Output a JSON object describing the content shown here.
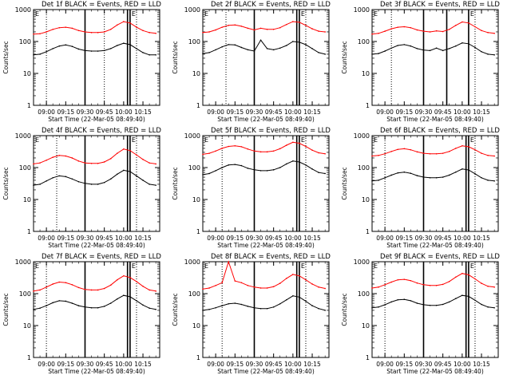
{
  "figure": {
    "shared": {
      "ylabel": "Counts/sec",
      "xlabel": "Start Time (22-Mar-05 08:49:40)",
      "xticks": [
        "09:00",
        "09:15",
        "09:30",
        "09:45",
        "10:00",
        "10:15"
      ],
      "yticks": [
        "1",
        "10",
        "100",
        "1000"
      ],
      "marker_labels": [
        "E",
        "E"
      ],
      "colors": {
        "events": "#000000",
        "lld": "#ff0000",
        "axes": "#000000"
      }
    }
  },
  "chart_data": [
    {
      "type": "line",
      "title": "Det 1f BLACK = Events, RED = LLD",
      "xlabel": "Start Time (22-Mar-05 08:49:40)",
      "ylabel": "Counts/sec",
      "x_tick_labels": [
        "09:00",
        "09:15",
        "09:30",
        "09:45",
        "10:00",
        "10:15"
      ],
      "y_tick_labels": [
        "1",
        "10",
        "100",
        "1000"
      ],
      "y_log": true,
      "ylim": [
        1,
        1000
      ],
      "x": [
        "08:50",
        "08:55",
        "09:00",
        "09:05",
        "09:10",
        "09:15",
        "09:20",
        "09:25",
        "09:30",
        "09:35",
        "09:40",
        "09:45",
        "09:50",
        "09:55",
        "10:00",
        "10:05",
        "10:10",
        "10:15",
        "10:20",
        "10:25"
      ],
      "series": [
        {
          "name": "Events",
          "color": "#000000",
          "values": [
            38,
            40,
            48,
            60,
            72,
            78,
            70,
            58,
            52,
            50,
            50,
            52,
            60,
            75,
            88,
            80,
            60,
            45,
            38,
            38
          ]
        },
        {
          "name": "LLD",
          "color": "#ff0000",
          "values": [
            170,
            175,
            200,
            240,
            270,
            280,
            260,
            220,
            200,
            190,
            190,
            200,
            240,
            330,
            420,
            380,
            280,
            220,
            190,
            180
          ]
        }
      ],
      "dotted_lines": [
        "09:00",
        "09:45",
        "10:10"
      ],
      "solid_lines": [
        "09:30",
        "10:03",
        "10:05"
      ]
    },
    {
      "type": "line",
      "title": "Det 2f BLACK = Events, RED = LLD",
      "xlabel": "Start Time (22-Mar-05 08:49:40)",
      "ylabel": "Counts/sec",
      "x_tick_labels": [
        "09:00",
        "09:15",
        "09:30",
        "09:45",
        "10:00",
        "10:15"
      ],
      "y_tick_labels": [
        "1",
        "10",
        "100",
        "1000"
      ],
      "y_log": true,
      "ylim": [
        1,
        1000
      ],
      "x": [
        "08:50",
        "08:55",
        "09:00",
        "09:05",
        "09:10",
        "09:15",
        "09:20",
        "09:25",
        "09:30",
        "09:35",
        "09:40",
        "09:45",
        "09:50",
        "09:55",
        "10:00",
        "10:05",
        "10:10",
        "10:15",
        "10:20",
        "10:25"
      ],
      "series": [
        {
          "name": "Events",
          "color": "#000000",
          "values": [
            42,
            45,
            55,
            68,
            80,
            78,
            65,
            55,
            50,
            110,
            60,
            55,
            62,
            75,
            100,
            95,
            80,
            60,
            45,
            40
          ]
        },
        {
          "name": "LLD",
          "color": "#ff0000",
          "values": [
            190,
            200,
            230,
            280,
            320,
            330,
            300,
            260,
            230,
            260,
            240,
            240,
            270,
            340,
            420,
            400,
            320,
            250,
            210,
            200
          ]
        }
      ],
      "dotted_lines": [
        "09:08",
        "10:10"
      ],
      "solid_lines": [
        "09:30",
        "10:03",
        "10:05"
      ]
    },
    {
      "type": "line",
      "title": "Det 3f BLACK = Events, RED = LLD",
      "xlabel": "Start Time (22-Mar-05 08:49:40)",
      "ylabel": "Counts/sec",
      "x_tick_labels": [
        "09:00",
        "09:15",
        "09:30",
        "09:45",
        "10:00",
        "10:15"
      ],
      "y_tick_labels": [
        "1",
        "10",
        "100",
        "1000"
      ],
      "y_log": true,
      "ylim": [
        1,
        1000
      ],
      "x": [
        "08:50",
        "08:55",
        "09:00",
        "09:05",
        "09:10",
        "09:15",
        "09:20",
        "09:25",
        "09:30",
        "09:35",
        "09:40",
        "09:45",
        "09:50",
        "09:55",
        "10:00",
        "10:05",
        "10:10",
        "10:15",
        "10:20",
        "10:25"
      ],
      "series": [
        {
          "name": "Events",
          "color": "#000000",
          "values": [
            40,
            42,
            50,
            62,
            75,
            80,
            72,
            60,
            54,
            52,
            62,
            52,
            60,
            72,
            90,
            85,
            65,
            48,
            40,
            38
          ]
        },
        {
          "name": "LLD",
          "color": "#ff0000",
          "values": [
            170,
            180,
            210,
            250,
            280,
            290,
            270,
            230,
            210,
            200,
            215,
            205,
            240,
            320,
            410,
            380,
            290,
            220,
            190,
            180
          ]
        }
      ],
      "dotted_lines": [
        "09:05",
        "10:10"
      ],
      "solid_lines": [
        "09:30",
        "09:48",
        "10:05"
      ]
    },
    {
      "type": "line",
      "title": "Det 4f BLACK = Events, RED = LLD",
      "xlabel": "Start Time (22-Mar-05 08:49:40)",
      "ylabel": "Counts/sec",
      "x_tick_labels": [
        "09:00",
        "09:15",
        "09:30",
        "09:45",
        "10:00",
        "10:15"
      ],
      "y_tick_labels": [
        "1",
        "10",
        "100",
        "1000"
      ],
      "y_log": true,
      "ylim": [
        1,
        1000
      ],
      "x": [
        "08:50",
        "08:55",
        "09:00",
        "09:05",
        "09:10",
        "09:15",
        "09:20",
        "09:25",
        "09:30",
        "09:35",
        "09:40",
        "09:45",
        "09:50",
        "09:55",
        "10:00",
        "10:05",
        "10:10",
        "10:15",
        "10:20",
        "10:25"
      ],
      "series": [
        {
          "name": "Events",
          "color": "#000000",
          "values": [
            28,
            30,
            38,
            48,
            55,
            52,
            44,
            36,
            32,
            30,
            30,
            34,
            44,
            62,
            82,
            75,
            55,
            40,
            30,
            28
          ]
        },
        {
          "name": "LLD",
          "color": "#ff0000",
          "values": [
            130,
            140,
            170,
            210,
            240,
            230,
            200,
            160,
            140,
            135,
            135,
            150,
            190,
            280,
            380,
            340,
            250,
            180,
            140,
            130
          ]
        }
      ],
      "dotted_lines": [
        "09:08",
        "10:10"
      ],
      "solid_lines": [
        "09:30",
        "10:03",
        "10:05"
      ]
    },
    {
      "type": "line",
      "title": "Det 5f BLACK = Events, RED = LLD",
      "xlabel": "Start Time (22-Mar-05 08:49:40)",
      "ylabel": "Counts/sec",
      "x_tick_labels": [
        "09:00",
        "09:15",
        "09:30",
        "09:45",
        "10:00",
        "10:15"
      ],
      "y_tick_labels": [
        "1",
        "10",
        "100",
        "1000"
      ],
      "y_log": true,
      "ylim": [
        1,
        1000
      ],
      "x": [
        "08:50",
        "08:55",
        "09:00",
        "09:05",
        "09:10",
        "09:15",
        "09:20",
        "09:25",
        "09:30",
        "09:35",
        "09:40",
        "09:45",
        "09:50",
        "09:55",
        "10:00",
        "10:05",
        "10:10",
        "10:15",
        "10:20",
        "10:25"
      ],
      "series": [
        {
          "name": "Events",
          "color": "#000000",
          "values": [
            60,
            65,
            80,
            100,
            120,
            125,
            115,
            95,
            85,
            80,
            80,
            85,
            100,
            130,
            160,
            150,
            120,
            90,
            70,
            65
          ]
        },
        {
          "name": "LLD",
          "color": "#ff0000",
          "values": [
            260,
            280,
            330,
            400,
            460,
            480,
            450,
            380,
            330,
            310,
            310,
            330,
            390,
            500,
            620,
            580,
            460,
            350,
            290,
            270
          ]
        }
      ],
      "dotted_lines": [
        "09:05",
        "10:10"
      ],
      "solid_lines": [
        "09:30",
        "10:03",
        "10:05"
      ]
    },
    {
      "type": "line",
      "title": "Det 6f BLACK = Events, RED = LLD",
      "xlabel": "Start Time (22-Mar-05 08:49:40)",
      "ylabel": "Counts/sec",
      "x_tick_labels": [
        "09:00",
        "09:15",
        "09:30",
        "09:45",
        "10:00",
        "10:15"
      ],
      "y_tick_labels": [
        "1",
        "10",
        "100",
        "1000"
      ],
      "y_log": true,
      "ylim": [
        1,
        1000
      ],
      "x": [
        "08:50",
        "08:55",
        "09:00",
        "09:05",
        "09:10",
        "09:15",
        "09:20",
        "09:25",
        "09:30",
        "09:35",
        "09:40",
        "09:45",
        "09:50",
        "09:55",
        "10:00",
        "10:05",
        "10:10",
        "10:15",
        "10:20",
        "10:25"
      ],
      "series": [
        {
          "name": "Events",
          "color": "#000000",
          "values": [
            38,
            40,
            48,
            58,
            68,
            72,
            66,
            56,
            50,
            48,
            48,
            50,
            58,
            72,
            90,
            84,
            64,
            48,
            40,
            38
          ]
        },
        {
          "name": "LLD",
          "color": "#ff0000",
          "values": [
            230,
            240,
            270,
            320,
            370,
            390,
            360,
            310,
            280,
            270,
            270,
            280,
            320,
            400,
            480,
            450,
            360,
            280,
            240,
            230
          ]
        }
      ],
      "dotted_lines": [
        "09:00",
        "10:10"
      ],
      "solid_lines": [
        "09:30",
        "10:03",
        "10:05"
      ]
    },
    {
      "type": "line",
      "title": "Det 7f BLACK = Events, RED = LLD",
      "xlabel": "Start Time (22-Mar-05 08:49:40)",
      "ylabel": "Counts/sec",
      "x_tick_labels": [
        "09:00",
        "09:15",
        "09:30",
        "09:45",
        "10:00",
        "10:15"
      ],
      "y_tick_labels": [
        "1",
        "10",
        "100",
        "1000"
      ],
      "y_log": true,
      "ylim": [
        1,
        1000
      ],
      "x": [
        "08:50",
        "08:55",
        "09:00",
        "09:05",
        "09:10",
        "09:15",
        "09:20",
        "09:25",
        "09:30",
        "09:35",
        "09:40",
        "09:45",
        "09:50",
        "09:55",
        "10:00",
        "10:05",
        "10:10",
        "10:15",
        "10:20",
        "10:25"
      ],
      "series": [
        {
          "name": "Events",
          "color": "#000000",
          "values": [
            32,
            35,
            42,
            52,
            60,
            58,
            50,
            42,
            38,
            36,
            36,
            40,
            50,
            68,
            88,
            80,
            60,
            44,
            35,
            32
          ]
        },
        {
          "name": "LLD",
          "color": "#ff0000",
          "values": [
            120,
            130,
            160,
            200,
            230,
            220,
            190,
            155,
            135,
            130,
            130,
            145,
            185,
            270,
            360,
            320,
            240,
            170,
            130,
            120
          ]
        }
      ],
      "dotted_lines": [
        "09:00",
        "10:10"
      ],
      "solid_lines": [
        "09:30",
        "10:03",
        "10:05"
      ]
    },
    {
      "type": "line",
      "title": "Det 8f BLACK = Events, RED = LLD",
      "xlabel": "Start Time (22-Mar-05 08:49:40)",
      "ylabel": "Counts/sec",
      "x_tick_labels": [
        "09:00",
        "09:15",
        "09:30",
        "09:45",
        "10:00",
        "10:15"
      ],
      "y_tick_labels": [
        "1",
        "10",
        "100",
        "1000"
      ],
      "y_log": true,
      "ylim": [
        1,
        1000
      ],
      "x": [
        "08:50",
        "08:55",
        "09:00",
        "09:05",
        "09:10",
        "09:15",
        "09:20",
        "09:25",
        "09:30",
        "09:35",
        "09:40",
        "09:45",
        "09:50",
        "09:55",
        "10:00",
        "10:05",
        "10:10",
        "10:15",
        "10:20",
        "10:25"
      ],
      "series": [
        {
          "name": "Events",
          "color": "#000000",
          "values": [
            30,
            32,
            36,
            42,
            48,
            50,
            46,
            40,
            36,
            34,
            34,
            38,
            48,
            64,
            85,
            78,
            58,
            42,
            34,
            30
          ]
        },
        {
          "name": "LLD",
          "color": "#ff0000",
          "values": [
            140,
            150,
            180,
            220,
            1000,
            250,
            220,
            180,
            160,
            150,
            150,
            165,
            210,
            300,
            400,
            360,
            270,
            200,
            160,
            145
          ]
        }
      ],
      "dotted_lines": [
        "09:05",
        "10:10"
      ],
      "solid_lines": [
        "09:30",
        "10:03",
        "10:05"
      ]
    },
    {
      "type": "line",
      "title": "Det 9f BLACK = Events, RED = LLD",
      "xlabel": "Start Time (22-Mar-05 08:49:40)",
      "ylabel": "Counts/sec",
      "x_tick_labels": [
        "09:00",
        "09:15",
        "09:30",
        "09:45",
        "10:00",
        "10:15"
      ],
      "y_tick_labels": [
        "1",
        "10",
        "100",
        "1000"
      ],
      "y_log": true,
      "ylim": [
        1,
        1000
      ],
      "x": [
        "08:50",
        "08:55",
        "09:00",
        "09:05",
        "09:10",
        "09:15",
        "09:20",
        "09:25",
        "09:30",
        "09:35",
        "09:40",
        "09:45",
        "09:50",
        "09:55",
        "10:00",
        "10:05",
        "10:10",
        "10:15",
        "10:20",
        "10:25"
      ],
      "series": [
        {
          "name": "Events",
          "color": "#000000",
          "values": [
            36,
            38,
            45,
            55,
            64,
            66,
            60,
            50,
            45,
            43,
            43,
            46,
            55,
            70,
            88,
            82,
            62,
            46,
            38,
            36
          ]
        },
        {
          "name": "LLD",
          "color": "#ff0000",
          "values": [
            150,
            160,
            190,
            230,
            270,
            280,
            255,
            215,
            190,
            180,
            180,
            195,
            240,
            330,
            430,
            390,
            290,
            210,
            170,
            160
          ]
        }
      ],
      "dotted_lines": [
        "09:00",
        "10:10"
      ],
      "solid_lines": [
        "09:30",
        "10:03",
        "10:05"
      ]
    }
  ]
}
